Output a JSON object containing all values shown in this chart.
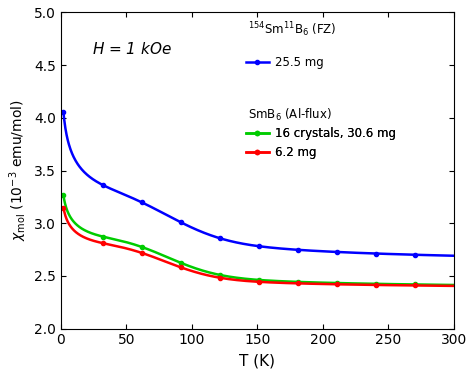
{
  "xlabel": "T (K)",
  "xlim": [
    0,
    300
  ],
  "ylim": [
    2.0,
    5.0
  ],
  "xticks": [
    0,
    50,
    100,
    150,
    200,
    250,
    300
  ],
  "yticks": [
    2.0,
    2.5,
    3.0,
    3.5,
    4.0,
    4.5,
    5.0
  ],
  "colors": {
    "blue": "#0000ff",
    "green": "#00cc00",
    "red": "#ff0000"
  },
  "legend_header1": "$^{154}$Sm$^{11}$B$_6$ (FZ)",
  "legend_label1": "25.5 mg",
  "legend_header2": "SmB$_6$ (Al-flux)",
  "legend_label2": "16 crystals, 30.6 mg",
  "legend_label3": "6.2 mg",
  "annotation": "$H$ = 1 kOe",
  "background": "#ffffff"
}
